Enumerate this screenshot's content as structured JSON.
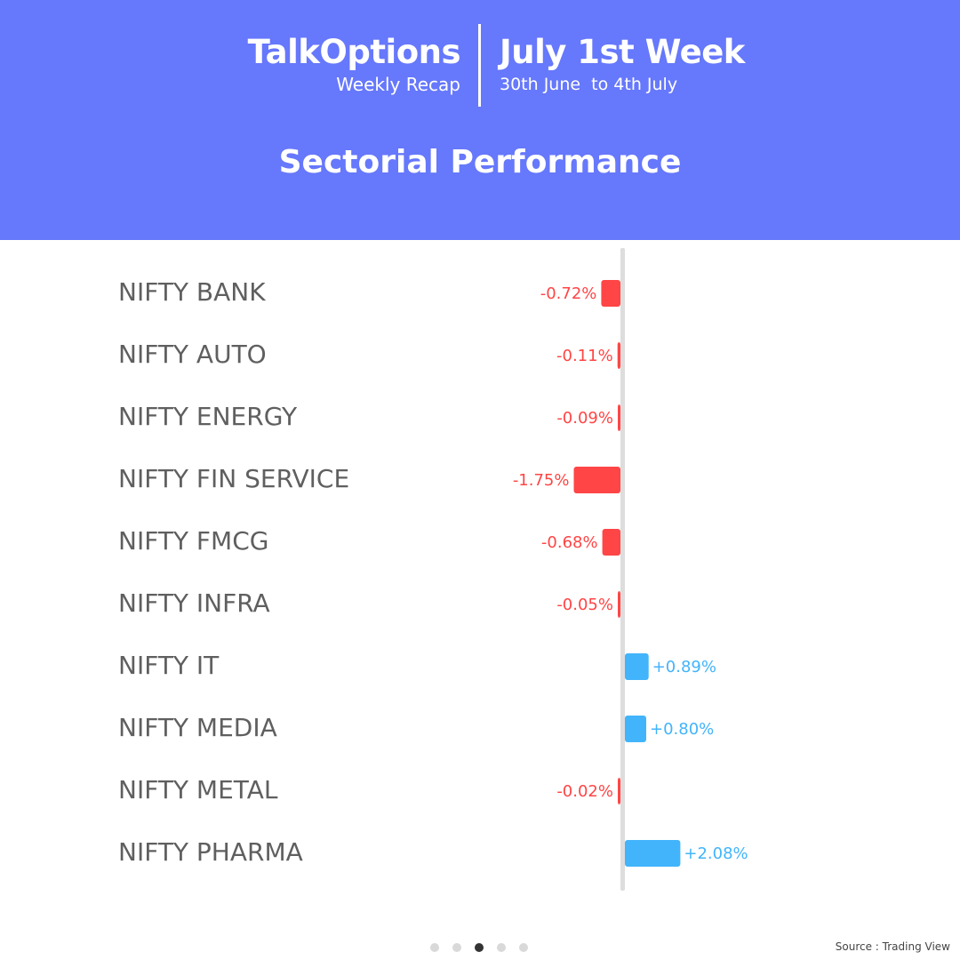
{
  "header": {
    "brand_name": "TalkOptions",
    "brand_subtitle": "Weekly Recap",
    "week_title": "July 1st Week",
    "week_range": "30th June  to 4th July",
    "section_title": "Sectorial Performance",
    "background_color": "#6678fb"
  },
  "chart_data": {
    "type": "bar",
    "orientation": "horizontal",
    "categories": [
      "NIFTY BANK",
      "NIFTY AUTO",
      "NIFTY ENERGY",
      "NIFTY FIN SERVICE",
      "NIFTY FMCG",
      "NIFTY INFRA",
      "NIFTY IT",
      "NIFTY MEDIA",
      "NIFTY METAL",
      "NIFTY PHARMA"
    ],
    "values": [
      -0.72,
      -0.11,
      -0.09,
      -1.75,
      -0.68,
      -0.05,
      0.89,
      0.8,
      -0.02,
      2.08
    ],
    "value_labels": [
      "-0.72%",
      "-0.11%",
      "-0.09%",
      "-1.75%",
      "-0.68%",
      "-0.05%",
      "+0.89%",
      "+0.80%",
      "-0.02%",
      "+2.08%"
    ],
    "unit": "%",
    "negative_color": "#ff4545",
    "positive_color": "#42b4fb",
    "axis_color": "#dddddd",
    "label_color": "#5f5f5f"
  },
  "pagination": {
    "count": 5,
    "active_index": 2,
    "active_color": "#333333",
    "inactive_color": "#d9d9d9"
  },
  "footer": {
    "source": "Source : Trading View"
  }
}
